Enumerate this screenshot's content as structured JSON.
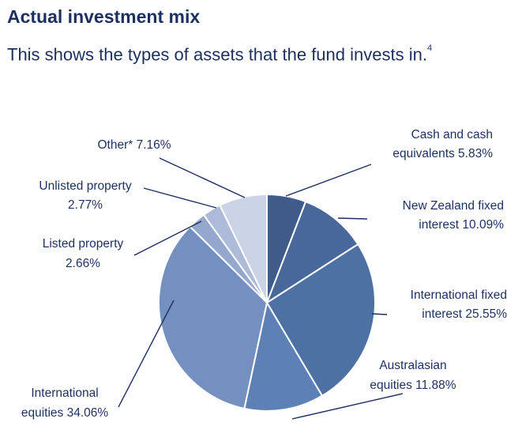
{
  "header": {
    "title": "Actual investment mix",
    "subtitle": "This shows the types of assets that the fund invests in.",
    "footnote_ref": "4"
  },
  "chart_data": {
    "type": "pie",
    "title": "Actual investment mix",
    "start_angle_deg": 0,
    "direction": "clockwise",
    "slices": [
      {
        "label_lines": [
          "Cash and cash",
          "equivalents 5.83%"
        ],
        "value": 5.83,
        "color": "#3e5b8a"
      },
      {
        "label_lines": [
          "New Zealand fixed",
          "interest 10.09%"
        ],
        "value": 10.09,
        "color": "#48679a"
      },
      {
        "label_lines": [
          "International fixed",
          "interest 25.55%"
        ],
        "value": 25.55,
        "color": "#4e71a4"
      },
      {
        "label_lines": [
          "Australasian",
          "equities 11.88%"
        ],
        "value": 11.88,
        "color": "#5e81b5"
      },
      {
        "label_lines": [
          "International",
          "equities 34.06%"
        ],
        "value": 34.06,
        "color": "#7390c0"
      },
      {
        "label_lines": [
          "Listed property",
          "2.66%"
        ],
        "value": 2.66,
        "color": "#94a7cc"
      },
      {
        "label_lines": [
          "Unlisted property",
          "2.77%"
        ],
        "value": 2.77,
        "color": "#aebbd8"
      },
      {
        "label_lines": [
          "Other* 7.16%"
        ],
        "value": 7.16,
        "color": "#cbd3e6"
      }
    ]
  }
}
